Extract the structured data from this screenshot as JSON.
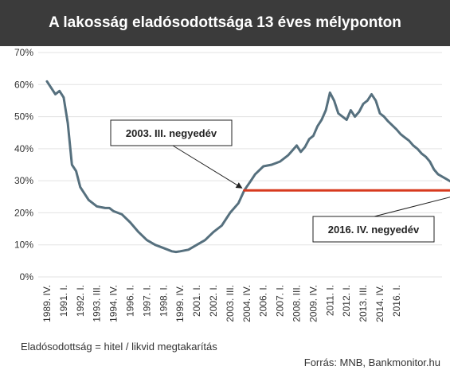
{
  "title": "A lakosság eladósodottsága 13 éves mélyponton",
  "footnote": "Eladósodottság = hitel / likvid megtakarítás",
  "source": "Forrás: MNB, Bankmonitor.hu",
  "colors": {
    "title_bg": "#3b3b3b",
    "line": "#56707e",
    "reference": "#d73a1e",
    "grid": "#e3e3e3"
  },
  "chart_data": {
    "type": "line",
    "title": "A lakosság eladósodottsága 13 éves mélyponton",
    "xlabel": "",
    "ylabel": "",
    "ylim": [
      0,
      70
    ],
    "yticks": [
      "0%",
      "10%",
      "20%",
      "30%",
      "40%",
      "50%",
      "60%",
      "70%"
    ],
    "grid": true,
    "x_categories": [
      "1989. IV.",
      "1991. I.",
      "1992. I.",
      "1993. III.",
      "1994. IV.",
      "1996. I.",
      "1997. I.",
      "1998. I.",
      "1999. IV.",
      "2001. I.",
      "2002. I.",
      "2003. III.",
      "2004. IV.",
      "2006. I.",
      "2007. I.",
      "2008. III.",
      "2009. IV.",
      "2011. I.",
      "2012. I.",
      "2013. III.",
      "2014. IV.",
      "2016. I."
    ],
    "series": [
      {
        "name": "",
        "points": [
          [
            0,
            61
          ],
          [
            0.5,
            57
          ],
          [
            0.75,
            58
          ],
          [
            1.0,
            56
          ],
          [
            1.25,
            48
          ],
          [
            1.5,
            35
          ],
          [
            1.75,
            33
          ],
          [
            2,
            28
          ],
          [
            2.5,
            24
          ],
          [
            3,
            22
          ],
          [
            3.5,
            21.5
          ],
          [
            3.75,
            21.5
          ],
          [
            4,
            20.5
          ],
          [
            4.5,
            19.5
          ],
          [
            5,
            17
          ],
          [
            5.5,
            14
          ],
          [
            6,
            11.5
          ],
          [
            6.5,
            10
          ],
          [
            7,
            9
          ],
          [
            7.5,
            8
          ],
          [
            7.75,
            7.8
          ],
          [
            8,
            8
          ],
          [
            8.5,
            8.5
          ],
          [
            9,
            10
          ],
          [
            9.5,
            11.5
          ],
          [
            10,
            14
          ],
          [
            10.5,
            16
          ],
          [
            11,
            20
          ],
          [
            11.5,
            23
          ],
          [
            11.85,
            27
          ],
          [
            12.25,
            30
          ],
          [
            12.5,
            32
          ],
          [
            13,
            34.5
          ],
          [
            13.5,
            35
          ],
          [
            14,
            36
          ],
          [
            14.5,
            38
          ],
          [
            14.75,
            39.5
          ],
          [
            15,
            41
          ],
          [
            15.25,
            39
          ],
          [
            15.5,
            40.5
          ],
          [
            15.75,
            43
          ],
          [
            16,
            44
          ],
          [
            16.25,
            47
          ],
          [
            16.5,
            49
          ],
          [
            16.75,
            52
          ],
          [
            17,
            57.5
          ],
          [
            17.25,
            55
          ],
          [
            17.5,
            51
          ],
          [
            18,
            49
          ],
          [
            18.25,
            52
          ],
          [
            18.5,
            50
          ],
          [
            18.75,
            51.5
          ],
          [
            19,
            54
          ],
          [
            19.25,
            55
          ],
          [
            19.5,
            57
          ],
          [
            19.75,
            55
          ],
          [
            20,
            51
          ],
          [
            20.25,
            50
          ],
          [
            20.5,
            48.5
          ],
          [
            21,
            46
          ],
          [
            21.25,
            44.5
          ],
          [
            21.5,
            43.5
          ],
          [
            21.75,
            42.5
          ],
          [
            22,
            41
          ],
          [
            22.25,
            40
          ],
          [
            22.5,
            38.5
          ],
          [
            22.75,
            37.5
          ],
          [
            23,
            36
          ],
          [
            23.25,
            33.5
          ],
          [
            23.5,
            32
          ],
          [
            24,
            30.5
          ],
          [
            24.5,
            29
          ],
          [
            25,
            28
          ],
          [
            25.35,
            27
          ]
        ]
      },
      {
        "name": "",
        "kind": "reference",
        "points": [
          [
            11.85,
            27
          ],
          [
            25.35,
            27
          ]
        ]
      }
    ],
    "annotations": [
      {
        "text": "2003. III. negyedév",
        "target": [
          11.85,
          27
        ]
      },
      {
        "text": "2016. IV. negyedév",
        "target": [
          25.35,
          27
        ]
      }
    ]
  }
}
